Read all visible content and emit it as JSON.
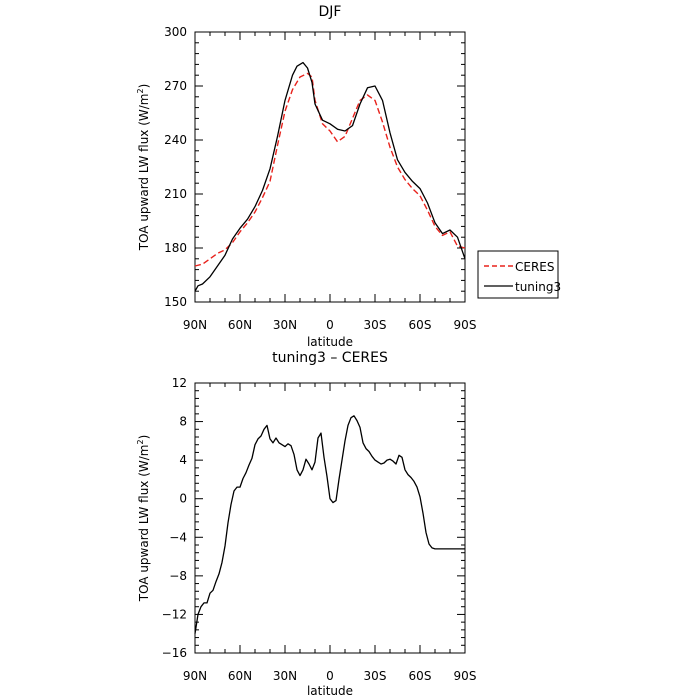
{
  "chart_data": [
    {
      "type": "line",
      "title": "DJF",
      "xlabel": "latitude",
      "ylabel": "TOA upward LW flux (W/m²)",
      "ylabel_main": "TOA upward LW flux (W/m",
      "ylabel_sup": "2",
      "ylabel_tail": ")",
      "xlim": [
        -90,
        90
      ],
      "ylim": [
        150,
        300
      ],
      "xticks": [
        -90,
        -60,
        -30,
        0,
        30,
        60,
        90
      ],
      "xtick_labels": [
        "90N",
        "60N",
        "30N",
        "0",
        "30S",
        "60S",
        "90S"
      ],
      "yticks": [
        150,
        180,
        210,
        240,
        270,
        300
      ],
      "ytick_labels": [
        "150",
        "180",
        "210",
        "240",
        "270",
        "300"
      ],
      "legend_position": "right-lower",
      "grid": false,
      "series": [
        {
          "name": "CERES",
          "color": "#e8221c",
          "dash": "dashed",
          "x": [
            -90,
            -85,
            -80,
            -75,
            -70,
            -65,
            -60,
            -55,
            -50,
            -45,
            -40,
            -35,
            -30,
            -25,
            -20,
            -15,
            -12,
            -10,
            -5,
            0,
            5,
            10,
            15,
            20,
            25,
            30,
            35,
            40,
            45,
            50,
            55,
            60,
            65,
            70,
            75,
            80,
            85,
            90
          ],
          "y": [
            170,
            171,
            174,
            177,
            179,
            183,
            189,
            194,
            200,
            208,
            217,
            237,
            256,
            268,
            275,
            277,
            275,
            262,
            249,
            245,
            239,
            242,
            252,
            262,
            265,
            262,
            250,
            236,
            225,
            218,
            213,
            209,
            201,
            192,
            187,
            189,
            181,
            180
          ]
        },
        {
          "name": "tuning3",
          "color": "#000000",
          "dash": "solid",
          "x": [
            -90,
            -88,
            -85,
            -80,
            -75,
            -70,
            -65,
            -60,
            -55,
            -50,
            -45,
            -40,
            -35,
            -30,
            -25,
            -22,
            -18,
            -15,
            -12,
            -10,
            -5,
            0,
            5,
            10,
            15,
            20,
            25,
            30,
            35,
            40,
            45,
            50,
            55,
            60,
            65,
            70,
            75,
            80,
            85,
            90
          ],
          "y": [
            156,
            159,
            160,
            164,
            170,
            176,
            185,
            191,
            196,
            203,
            212,
            224,
            242,
            262,
            276,
            281,
            283,
            280,
            272,
            260,
            251,
            249,
            246,
            245,
            248,
            260,
            269,
            270,
            262,
            244,
            229,
            222,
            217,
            213,
            205,
            194,
            188,
            190,
            186,
            174
          ]
        }
      ]
    },
    {
      "type": "line",
      "title": "tuning3 – CERES",
      "xlabel": "latitude",
      "ylabel": "TOA upward LW flux (W/m²)",
      "ylabel_main": "TOA upward LW flux (W/m",
      "ylabel_sup": "2",
      "ylabel_tail": ")",
      "xlim": [
        -90,
        90
      ],
      "ylim": [
        -16,
        12
      ],
      "xticks": [
        -90,
        -60,
        -30,
        0,
        30,
        60,
        90
      ],
      "xtick_labels": [
        "90N",
        "60N",
        "30N",
        "0",
        "30S",
        "60S",
        "90S"
      ],
      "yticks": [
        -16,
        -12,
        -8,
        -4,
        0,
        4,
        8,
        12
      ],
      "ytick_labels": [
        "−16",
        "−12",
        "−8",
        "−4",
        "0",
        "4",
        "8",
        "12"
      ],
      "grid": false,
      "series": [
        {
          "name": "",
          "color": "#000000",
          "dash": "solid",
          "x": [
            -90,
            -88,
            -86,
            -84,
            -82,
            -80,
            -78,
            -76,
            -74,
            -72,
            -70,
            -68,
            -66,
            -64,
            -62,
            -60,
            -58,
            -56,
            -54,
            -52,
            -50,
            -48,
            -46,
            -44,
            -42,
            -40,
            -38,
            -36,
            -34,
            -32,
            -30,
            -28,
            -26,
            -24,
            -22,
            -20,
            -18,
            -16,
            -14,
            -12,
            -10,
            -8,
            -6,
            -4,
            -2,
            0,
            2,
            4,
            6,
            8,
            10,
            12,
            14,
            16,
            18,
            20,
            22,
            24,
            26,
            28,
            30,
            32,
            34,
            36,
            38,
            40,
            42,
            44,
            46,
            48,
            50,
            52,
            54,
            56,
            58,
            60,
            62,
            64,
            66,
            68,
            70,
            72,
            74,
            76,
            78,
            80,
            82,
            84,
            86,
            88,
            90
          ],
          "y": [
            -14,
            -12,
            -11.2,
            -10.8,
            -10.8,
            -9.8,
            -9.5,
            -8.6,
            -7.8,
            -6.6,
            -4.9,
            -2.5,
            -0.6,
            0.8,
            1.2,
            1.2,
            2.1,
            2.7,
            3.5,
            4.2,
            5.6,
            6.2,
            6.5,
            7.2,
            7.6,
            6.2,
            5.8,
            6.3,
            5.8,
            5.6,
            5.4,
            5.7,
            5.5,
            4.6,
            3.0,
            2.4,
            3.0,
            4.1,
            3.6,
            3.0,
            3.8,
            6.3,
            6.8,
            4.3,
            2.3,
            0,
            -0.4,
            -0.2,
            2.0,
            4.0,
            6.0,
            7.6,
            8.4,
            8.6,
            8.1,
            7.4,
            5.8,
            5.2,
            4.9,
            4.4,
            4.0,
            3.8,
            3.6,
            3.7,
            4.0,
            4.1,
            3.9,
            3.6,
            4.5,
            4.3,
            3.0,
            2.5,
            2.2,
            1.8,
            1.2,
            0.2,
            -1.5,
            -3.5,
            -4.7,
            -5.1,
            -5.2,
            -5.2,
            -5.2,
            -5.2,
            -5.2,
            -5.2,
            -5.2,
            -5.2,
            -5.2,
            -5.2,
            -5.2
          ]
        }
      ]
    }
  ]
}
